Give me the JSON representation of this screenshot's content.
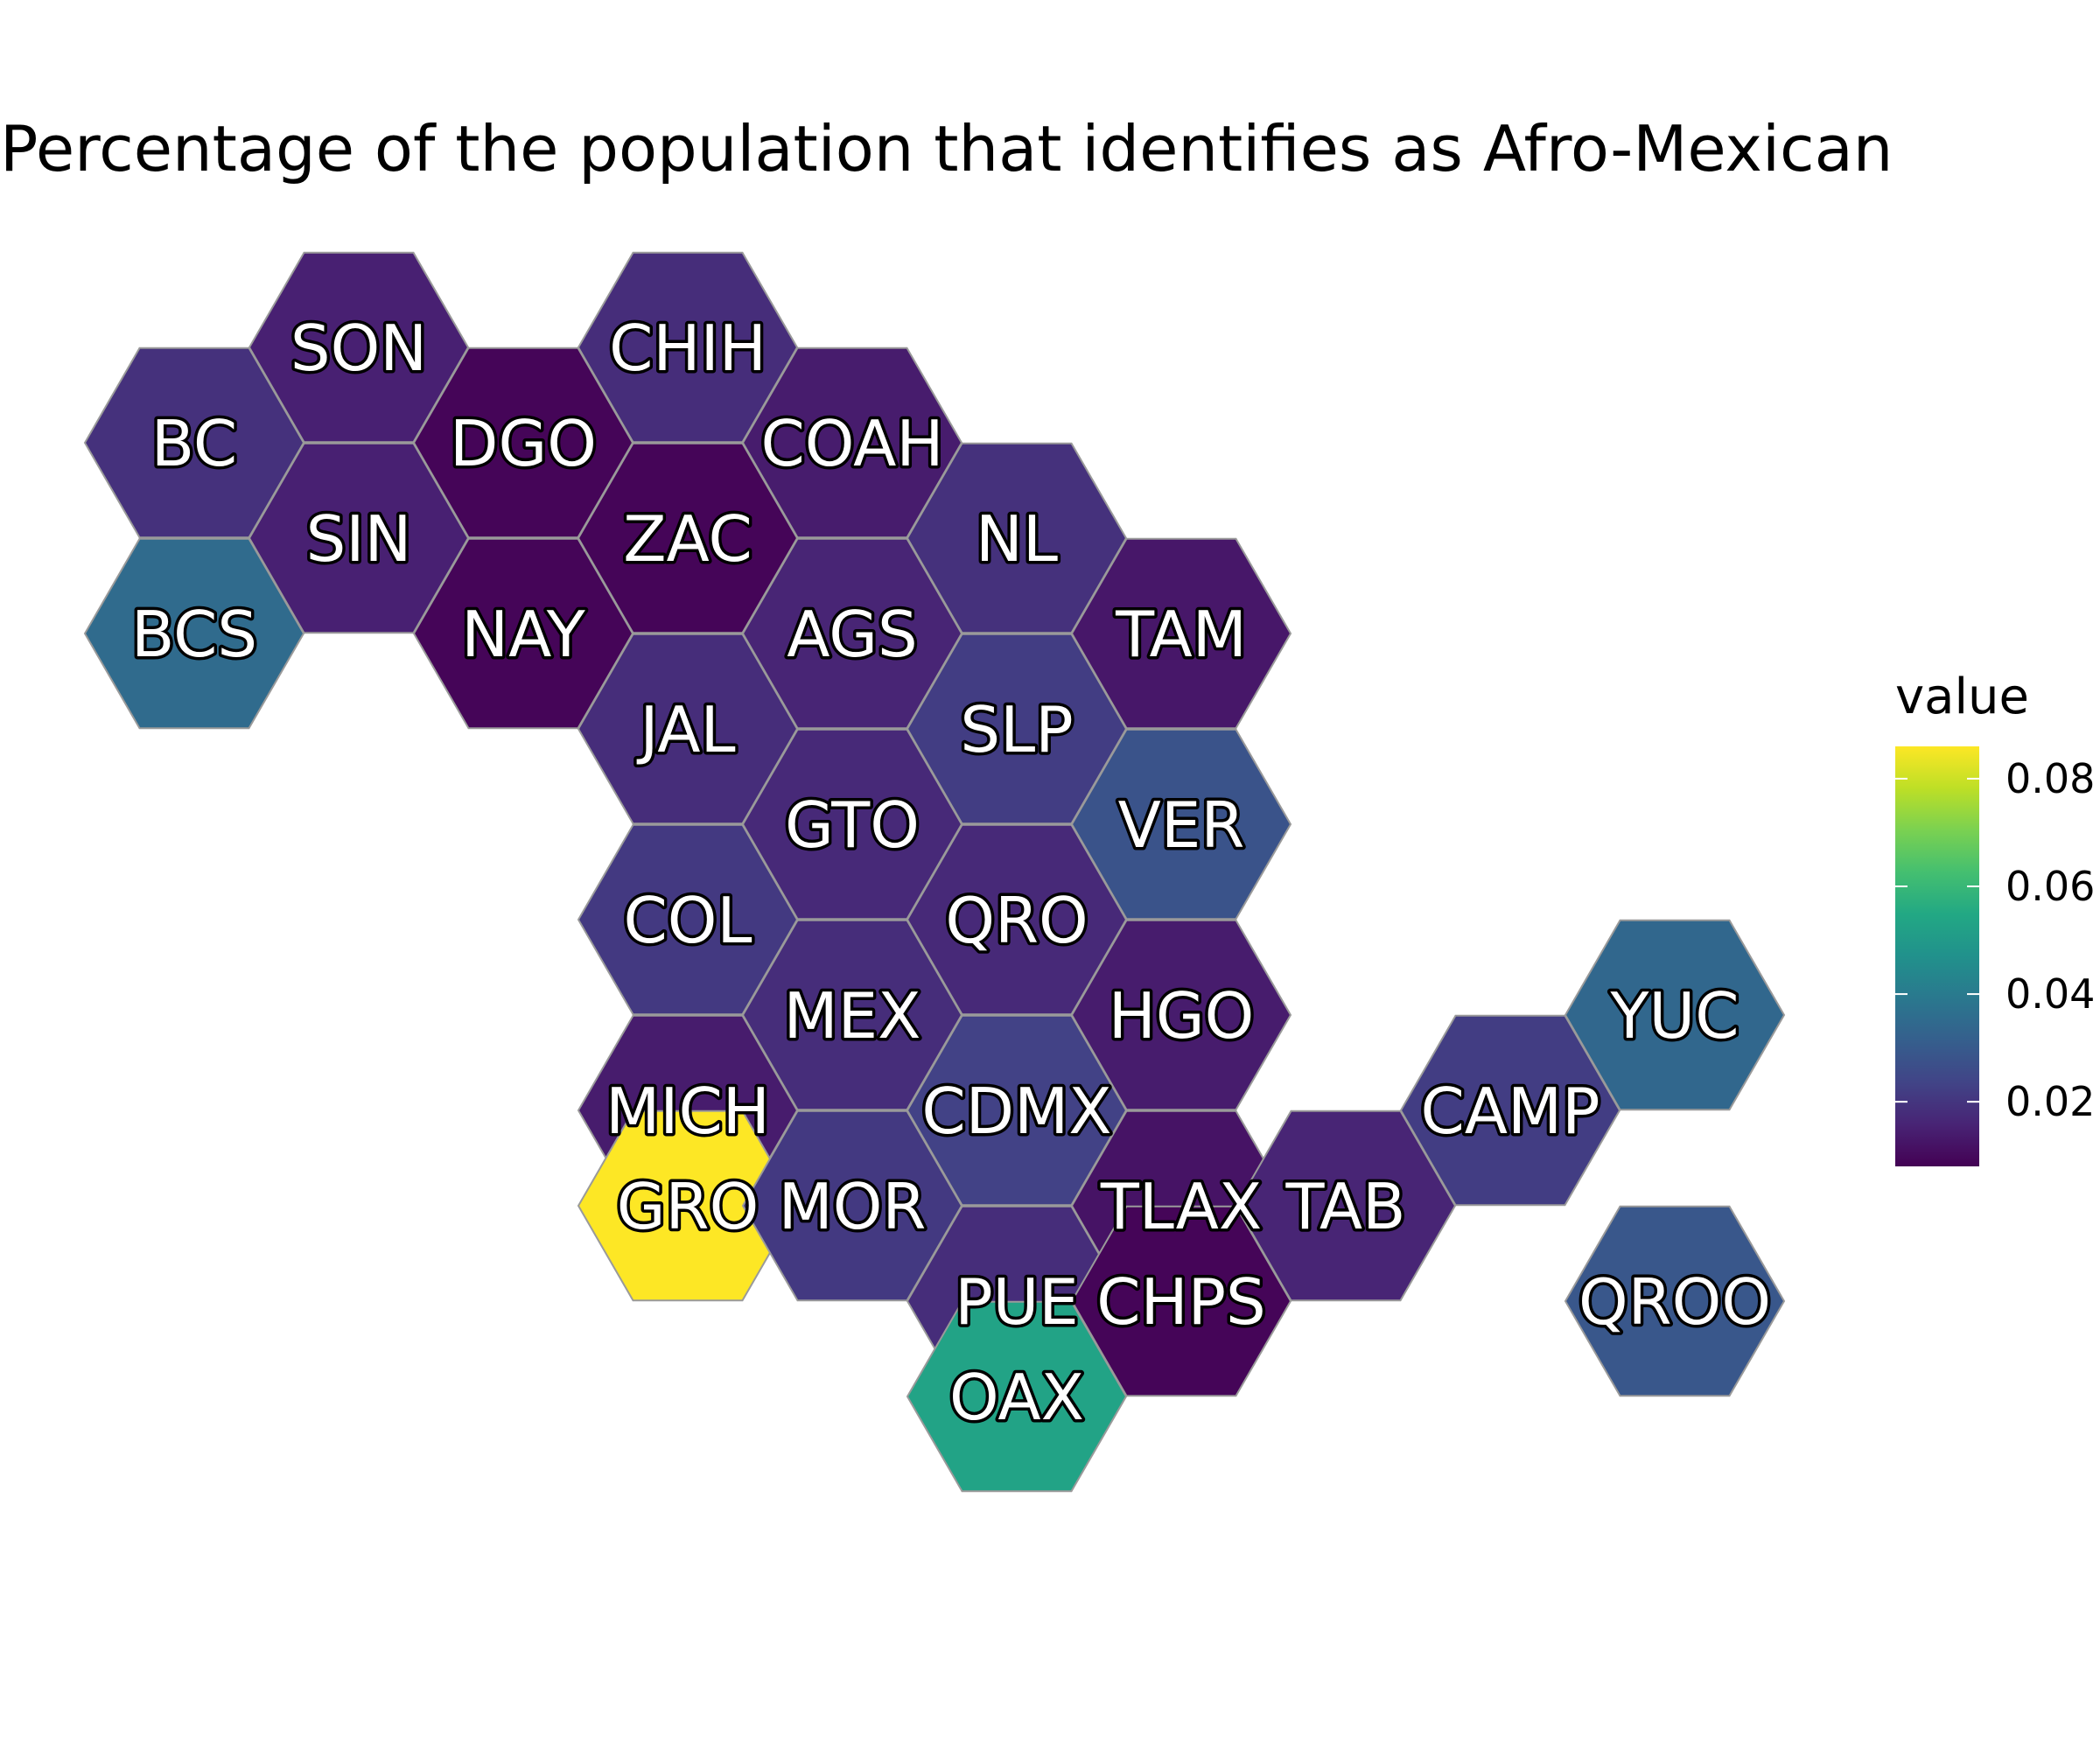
{
  "chart_data": {
    "type": "hexbin-choropleth",
    "title": "Percentage of the population that identifies as Afro-Mexican",
    "legend": {
      "title": "value",
      "placement": "right",
      "ticks": [
        "0.02",
        "0.04",
        "0.06",
        "0.08"
      ],
      "tick_values": [
        0.02,
        0.04,
        0.06,
        0.08
      ],
      "range": [
        0.008,
        0.086
      ],
      "palette": "viridis"
    },
    "states": [
      {
        "label": "SON",
        "col": 1,
        "row": 0,
        "value": 0.015
      },
      {
        "label": "CHIH",
        "col": 3,
        "row": 0,
        "value": 0.018
      },
      {
        "label": "BC",
        "col": 0,
        "row": 1,
        "value": 0.019
      },
      {
        "label": "DGO",
        "col": 2,
        "row": 1,
        "value": 0.009
      },
      {
        "label": "COAH",
        "col": 4,
        "row": 1,
        "value": 0.014
      },
      {
        "label": "SIN",
        "col": 1,
        "row": 2,
        "value": 0.015
      },
      {
        "label": "ZAC",
        "col": 3,
        "row": 2,
        "value": 0.009
      },
      {
        "label": "NL",
        "col": 5,
        "row": 2,
        "value": 0.019
      },
      {
        "label": "BCS",
        "col": 0,
        "row": 3,
        "value": 0.035
      },
      {
        "label": "NAY",
        "col": 2,
        "row": 3,
        "value": 0.009
      },
      {
        "label": "AGS",
        "col": 4,
        "row": 3,
        "value": 0.016
      },
      {
        "label": "TAM",
        "col": 6,
        "row": 3,
        "value": 0.013
      },
      {
        "label": "JAL",
        "col": 3,
        "row": 4,
        "value": 0.018
      },
      {
        "label": "SLP",
        "col": 5,
        "row": 4,
        "value": 0.022
      },
      {
        "label": "GTO",
        "col": 4,
        "row": 5,
        "value": 0.017
      },
      {
        "label": "VER",
        "col": 6,
        "row": 5,
        "value": 0.028
      },
      {
        "label": "COL",
        "col": 3,
        "row": 6,
        "value": 0.021
      },
      {
        "label": "QRO",
        "col": 5,
        "row": 6,
        "value": 0.017
      },
      {
        "label": "MEX",
        "col": 4,
        "row": 7,
        "value": 0.018
      },
      {
        "label": "HGO",
        "col": 6,
        "row": 7,
        "value": 0.014
      },
      {
        "label": "YUC",
        "col": 9,
        "row": 7,
        "value": 0.034
      },
      {
        "label": "MICH",
        "col": 3,
        "row": 8,
        "value": 0.014
      },
      {
        "label": "CDMX",
        "col": 5,
        "row": 8,
        "value": 0.023
      },
      {
        "label": "CAMP",
        "col": 8,
        "row": 8,
        "value": 0.022
      },
      {
        "label": "GRO",
        "col": 3,
        "row": 9,
        "value": 0.086
      },
      {
        "label": "MOR",
        "col": 4,
        "row": 9,
        "value": 0.021
      },
      {
        "label": "TLAX",
        "col": 6,
        "row": 9,
        "value": 0.012
      },
      {
        "label": "TAB",
        "col": 7,
        "row": 9,
        "value": 0.016
      },
      {
        "label": "PUE",
        "col": 5,
        "row": 10,
        "value": 0.018
      },
      {
        "label": "QROO",
        "col": 9,
        "row": 10,
        "value": 0.029
      },
      {
        "label": "CHPS",
        "col": 6,
        "row": 10,
        "value": 0.009
      },
      {
        "label": "OAX",
        "col": 5,
        "row": 11,
        "value": 0.053
      }
    ]
  }
}
